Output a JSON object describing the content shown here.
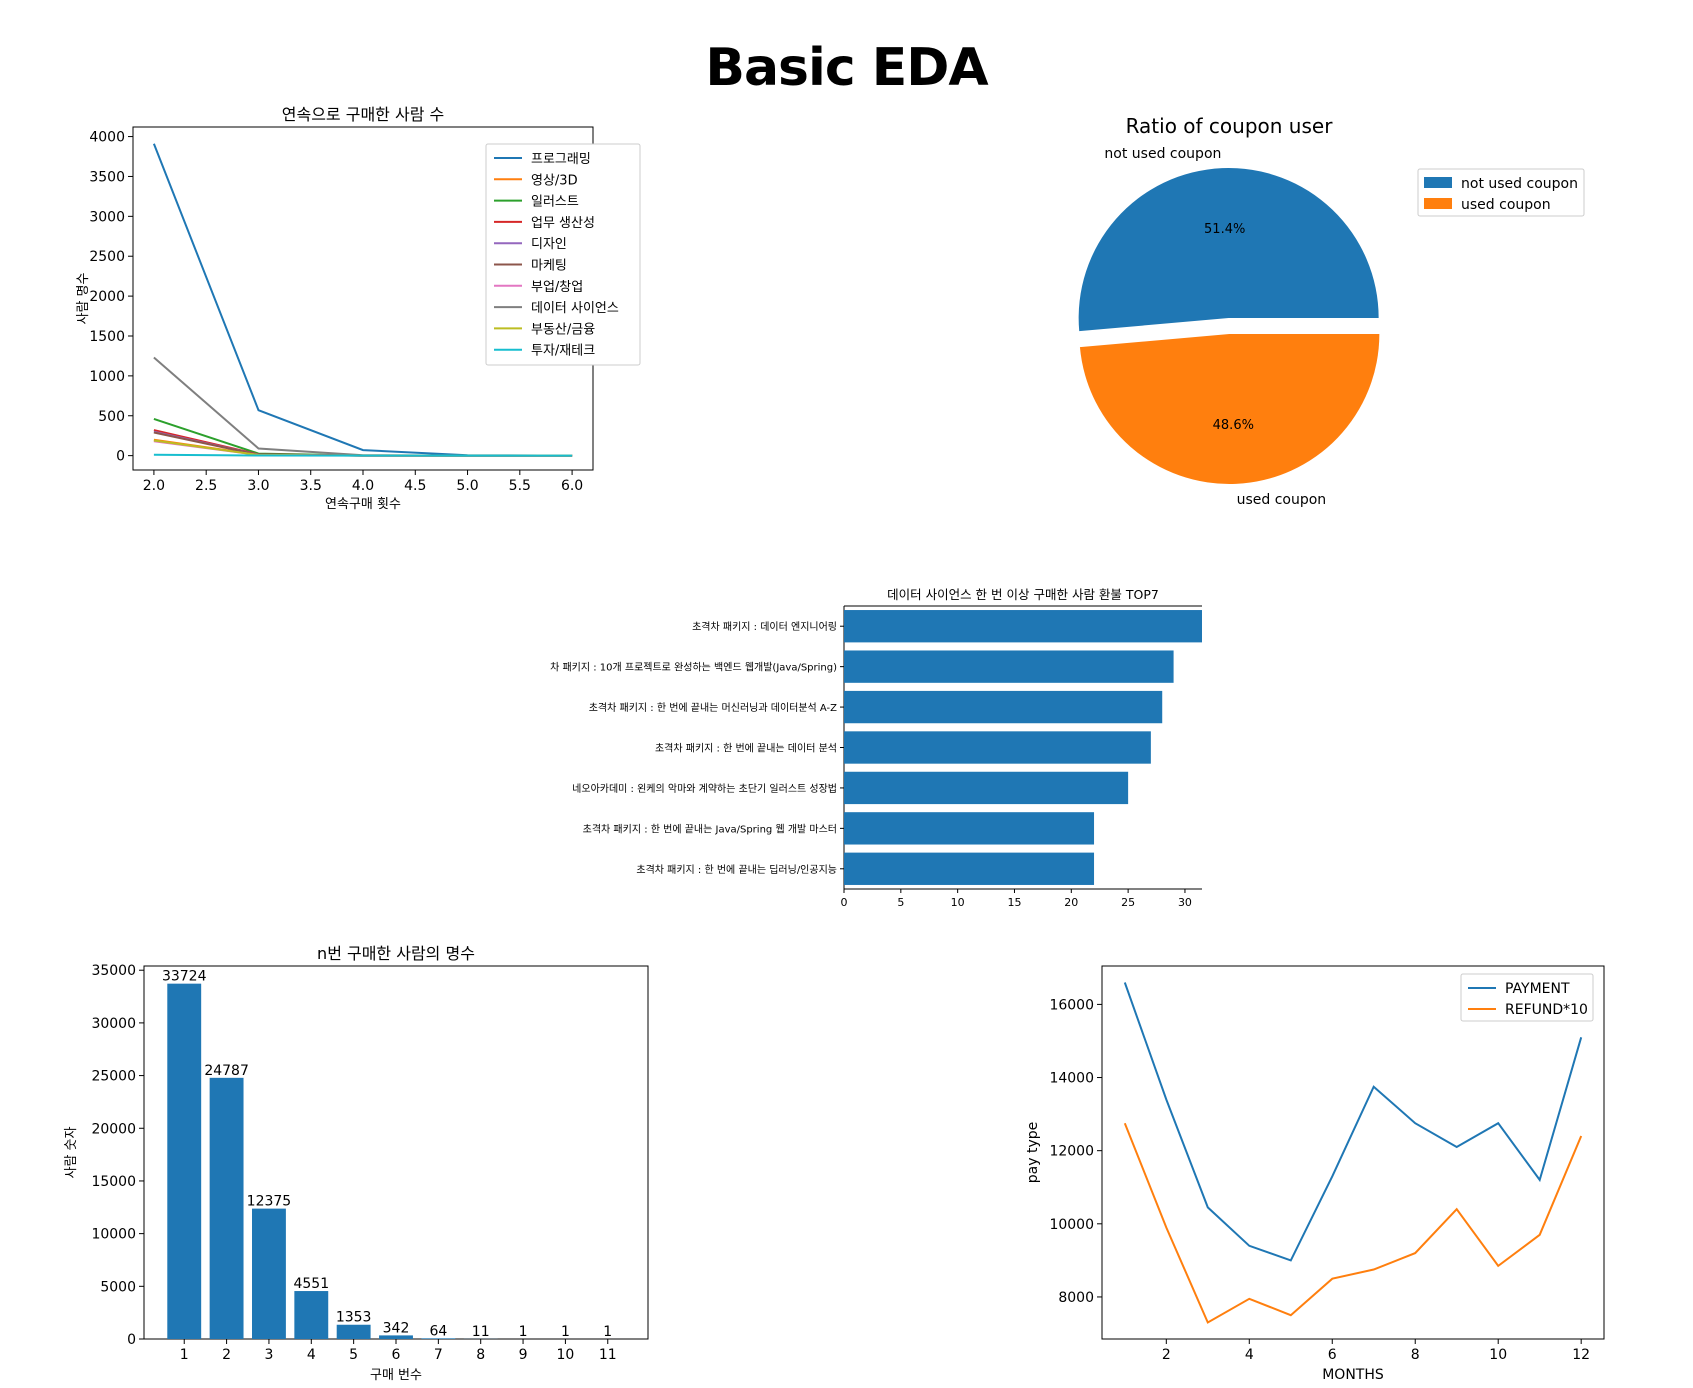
{
  "page": {
    "title": "Basic EDA"
  },
  "chart_data": [
    {
      "id": "consecutive",
      "type": "line",
      "title": "연속으로 구매한 사람 수",
      "xlabel": "연속구매 횟수",
      "ylabel": "사람 명수",
      "x": [
        2,
        3,
        4,
        5,
        6
      ],
      "xlim": [
        1.8,
        6.2
      ],
      "ylim": [
        -180,
        4120
      ],
      "xticks": [
        2.0,
        2.5,
        3.0,
        3.5,
        4.0,
        4.5,
        5.0,
        5.5,
        6.0
      ],
      "xtick_labels": [
        "2.0",
        "2.5",
        "3.0",
        "3.5",
        "4.0",
        "4.5",
        "5.0",
        "5.5",
        "6.0"
      ],
      "yticks": [
        0,
        500,
        1000,
        1500,
        2000,
        2500,
        3000,
        3500,
        4000
      ],
      "ytick_labels": [
        "0",
        "500",
        "1000",
        "1500",
        "2000",
        "2500",
        "3000",
        "3500",
        "4000"
      ],
      "legend": "upper right",
      "series": [
        {
          "name": "프로그래밍",
          "color": "#1f77b4",
          "values": [
            3910,
            570,
            70,
            5,
            0
          ]
        },
        {
          "name": "영상/3D",
          "color": "#ff7f0e",
          "values": [
            200,
            10,
            0,
            0,
            0
          ]
        },
        {
          "name": "일러스트",
          "color": "#2ca02c",
          "values": [
            460,
            25,
            2,
            0,
            0
          ]
        },
        {
          "name": "업무 생산성",
          "color": "#d62728",
          "values": [
            320,
            15,
            1,
            0,
            0
          ]
        },
        {
          "name": "디자인",
          "color": "#9467bd",
          "values": [
            300,
            12,
            1,
            0,
            0
          ]
        },
        {
          "name": "마케팅",
          "color": "#8c564b",
          "values": [
            290,
            10,
            0,
            0,
            0
          ]
        },
        {
          "name": "부업/창업",
          "color": "#e377c2",
          "values": [
            180,
            8,
            0,
            0,
            0
          ]
        },
        {
          "name": "데이터 사이언스",
          "color": "#7f7f7f",
          "values": [
            1230,
            90,
            5,
            0,
            0
          ]
        },
        {
          "name": "부동산/금융",
          "color": "#bcbd22",
          "values": [
            190,
            8,
            0,
            0,
            0
          ]
        },
        {
          "name": "투자/재테크",
          "color": "#17becf",
          "values": [
            10,
            2,
            0,
            0,
            0
          ]
        }
      ]
    },
    {
      "id": "coupon",
      "type": "pie",
      "title": "Ratio of coupon user",
      "slices": [
        {
          "label": "not used coupon",
          "value": 51.4,
          "pct": "51.4%",
          "color": "#1f77b4"
        },
        {
          "label": "used coupon",
          "value": 48.6,
          "pct": "48.6%",
          "color": "#ff7f0e"
        }
      ],
      "legend": "upper right",
      "explode": true
    },
    {
      "id": "refund",
      "type": "bar",
      "orientation": "horizontal",
      "title": "데이터 사이언스 한 번 이상 구매한 사람 환불 TOP7",
      "categories": [
        "초격차 패키지 : 데이터 엔지니어링",
        "차 패키지 : 10개 프로젝트로 완성하는 백엔드 웹개발(Java/Spring)",
        "초격차 패키지 : 한 번에 끝내는 머신러닝과 데이터분석 A-Z",
        "초격차 패키지 : 한 번에 끝내는 데이터 분석",
        "네오아카데미 : 왼케의 악마와 계약하는 초단기 일러스트 성장법",
        "초격차 패키지 : 한 번에 끝내는 Java/Spring 웹 개발 마스터",
        "초격차 패키지 : 한 번에 끝내는 딥러닝/인공지능"
      ],
      "values": [
        32,
        29,
        28,
        27,
        25,
        22,
        22
      ],
      "xlim": [
        0,
        31.5
      ],
      "xticks": [
        0,
        5,
        10,
        15,
        20,
        25,
        30
      ],
      "xtick_labels": [
        "0",
        "5",
        "10",
        "15",
        "20",
        "25",
        "30"
      ],
      "color": "#1f77b4"
    },
    {
      "id": "ntimes",
      "type": "bar",
      "title": "n번 구매한 사람의 명수",
      "xlabel": "구매 번수",
      "ylabel": "사람 숫자",
      "categories": [
        "1",
        "2",
        "3",
        "4",
        "5",
        "6",
        "7",
        "8",
        "9",
        "10",
        "11"
      ],
      "values": [
        33724,
        24787,
        12375,
        4551,
        1353,
        342,
        64,
        11,
        1,
        1,
        1
      ],
      "data_labels": [
        "33724",
        "24787",
        "12375",
        "4551",
        "1353",
        "342",
        "64",
        "11",
        "1",
        "1",
        "1"
      ],
      "ylim": [
        0,
        35400
      ],
      "yticks": [
        0,
        5000,
        10000,
        15000,
        20000,
        25000,
        30000,
        35000
      ],
      "ytick_labels": [
        "0",
        "5000",
        "10000",
        "15000",
        "20000",
        "25000",
        "30000",
        "35000"
      ],
      "color": "#1f77b4"
    },
    {
      "id": "monthly",
      "type": "line",
      "xlabel": "MONTHS",
      "ylabel": "pay type",
      "x": [
        1,
        2,
        3,
        4,
        5,
        6,
        7,
        8,
        9,
        10,
        11,
        12
      ],
      "xlim": [
        0.45,
        12.55
      ],
      "ylim": [
        6850,
        17050
      ],
      "xticks": [
        2,
        4,
        6,
        8,
        10,
        12
      ],
      "xtick_labels": [
        "2",
        "4",
        "6",
        "8",
        "10",
        "12"
      ],
      "yticks": [
        8000,
        10000,
        12000,
        14000,
        16000
      ],
      "ytick_labels": [
        "8000",
        "10000",
        "12000",
        "14000",
        "16000"
      ],
      "legend": "upper right",
      "series": [
        {
          "name": "PAYMENT",
          "color": "#1f77b4",
          "values": [
            16600,
            13400,
            10450,
            9400,
            9000,
            11300,
            13750,
            12750,
            12100,
            12750,
            11200,
            15100
          ]
        },
        {
          "name": "REFUND*10",
          "color": "#ff7f0e",
          "values": [
            12750,
            9900,
            7300,
            7950,
            7500,
            8500,
            8750,
            9200,
            10400,
            8850,
            9700,
            12400
          ]
        }
      ]
    }
  ]
}
